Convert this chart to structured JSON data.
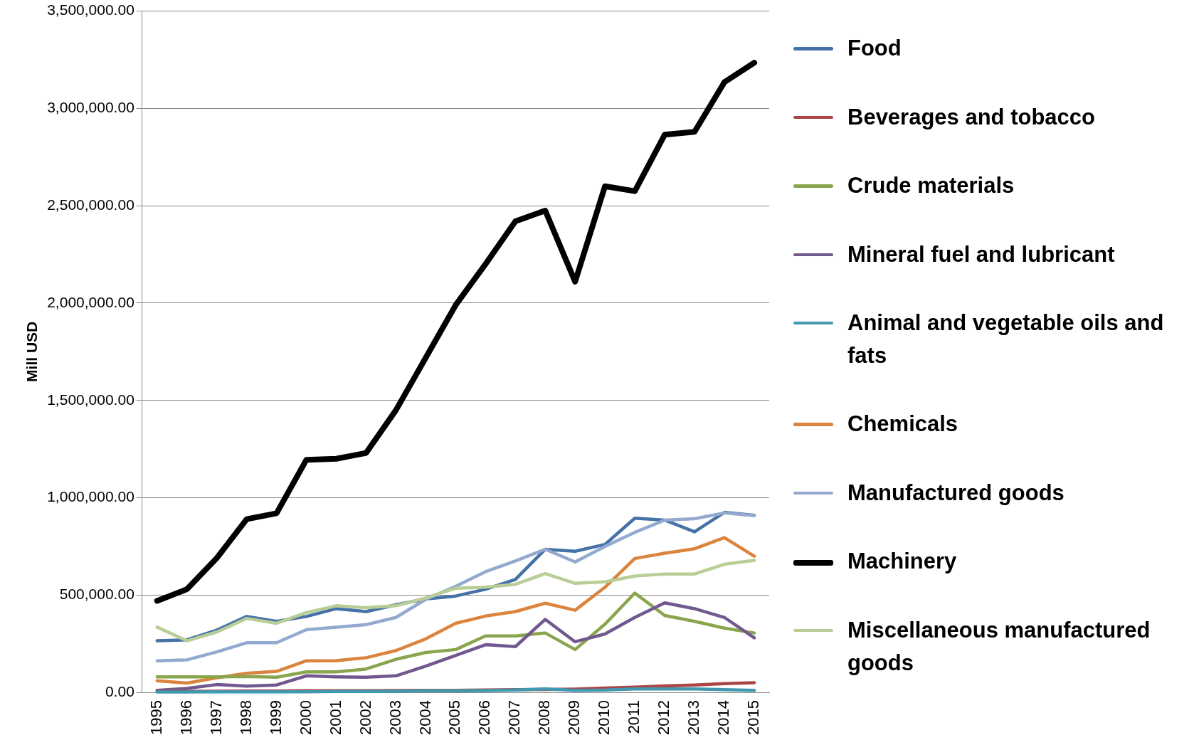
{
  "chart_data": {
    "type": "line",
    "ylabel": "Mill USD",
    "categories": [
      "1995",
      "1996",
      "1997",
      "1998",
      "1999",
      "2000",
      "2001",
      "2002",
      "2003",
      "2004",
      "2005",
      "2006",
      "2007",
      "2008",
      "2009",
      "2010",
      "2011",
      "2012",
      "2013",
      "2014",
      "2015"
    ],
    "series": [
      {
        "name": "Food",
        "color": "#4572a7",
        "values": [
          265000,
          270000,
          320000,
          390000,
          365000,
          390000,
          430000,
          415000,
          450000,
          480000,
          495000,
          530000,
          580000,
          735000,
          725000,
          760000,
          895000,
          885000,
          825000,
          925000,
          910000
        ]
      },
      {
        "name": "Beverages and tobacco",
        "color": "#aa4643",
        "values": [
          5000,
          5000,
          6000,
          7000,
          7000,
          8000,
          8000,
          8000,
          9000,
          10000,
          10000,
          12000,
          14000,
          15000,
          17000,
          22000,
          27000,
          33000,
          38000,
          45000,
          50000
        ]
      },
      {
        "name": "Crude materials",
        "color": "#89a54e",
        "values": [
          80000,
          80000,
          80000,
          82000,
          78000,
          105000,
          105000,
          120000,
          170000,
          205000,
          220000,
          290000,
          290000,
          305000,
          220000,
          350000,
          510000,
          395000,
          365000,
          330000,
          305000
        ]
      },
      {
        "name": "Mineral fuel and lubricant",
        "color": "#71588f",
        "values": [
          10000,
          20000,
          40000,
          32000,
          38000,
          85000,
          80000,
          78000,
          85000,
          135000,
          190000,
          245000,
          235000,
          375000,
          260000,
          300000,
          385000,
          460000,
          430000,
          385000,
          280000
        ]
      },
      {
        "name": "Animal and vegetable oils and fats",
        "color": "#4198af",
        "values": [
          2000,
          2000,
          3000,
          3000,
          3000,
          3000,
          5000,
          5000,
          6000,
          8000,
          8000,
          9000,
          12000,
          18000,
          10000,
          12000,
          18000,
          18000,
          18000,
          14000,
          10000
        ]
      },
      {
        "name": "Chemicals",
        "color": "#db843d",
        "values": [
          60000,
          48000,
          75000,
          98000,
          108000,
          162000,
          163000,
          178000,
          215000,
          275000,
          355000,
          392000,
          415000,
          458000,
          422000,
          540000,
          688000,
          715000,
          738000,
          795000,
          700000
        ]
      },
      {
        "name": "Manufactured goods",
        "color": "#93a9cf",
        "values": [
          162000,
          167000,
          208000,
          255000,
          255000,
          322000,
          335000,
          348000,
          385000,
          478000,
          545000,
          620000,
          675000,
          735000,
          670000,
          750000,
          822000,
          885000,
          892000,
          922000,
          908000
        ]
      },
      {
        "name": "Machinery",
        "color": "#000000",
        "values": [
          470000,
          530000,
          690000,
          890000,
          920000,
          1195000,
          1200000,
          1230000,
          1450000,
          1720000,
          1990000,
          2200000,
          2420000,
          2475000,
          2110000,
          2600000,
          2575000,
          2865000,
          2880000,
          3135000,
          3235000
        ]
      },
      {
        "name": "Miscellaneous manufactured goods",
        "color": "#b9cd96",
        "values": [
          335000,
          265000,
          310000,
          380000,
          355000,
          410000,
          445000,
          435000,
          445000,
          485000,
          535000,
          540000,
          555000,
          610000,
          560000,
          568000,
          598000,
          608000,
          608000,
          658000,
          678000
        ]
      }
    ],
    "ylim": [
      0,
      3500000
    ],
    "yticks": [
      {
        "value": 0,
        "label": "0.00"
      },
      {
        "value": 500000,
        "label": "500,000.00"
      },
      {
        "value": 1000000,
        "label": "1,000,000.00"
      },
      {
        "value": 1500000,
        "label": "1,500,000.00"
      },
      {
        "value": 2000000,
        "label": "2,000,000.00"
      },
      {
        "value": 2500000,
        "label": "2,500,000.00"
      },
      {
        "value": 3000000,
        "label": "3,000,000.00"
      },
      {
        "value": 3500000,
        "label": "3,500,000.00"
      }
    ],
    "grid": "y",
    "legend": "right",
    "marker": "none",
    "line_style": "solid"
  }
}
